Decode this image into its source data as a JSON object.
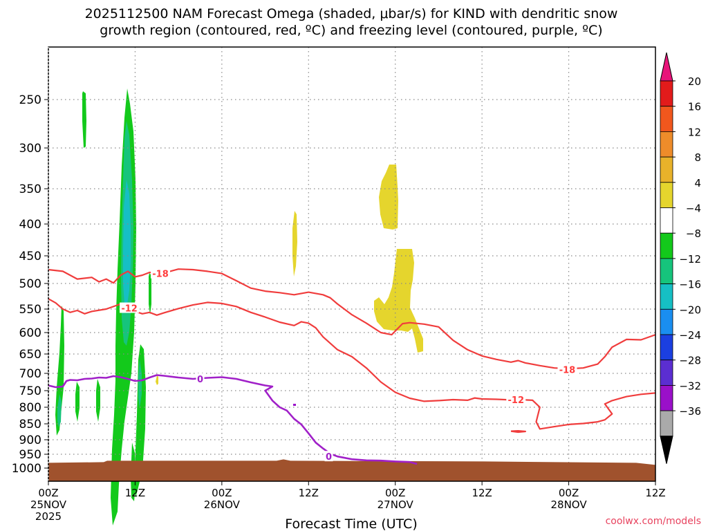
{
  "chart_data": {
    "type": "contour",
    "title_line1": "2025112500 NAM Forecast Omega (shaded, μbar/s) for KIND with dendritic snow",
    "title_line2": "growth region (contoured, red, ºC) and freezing level (contoured, purple, ºC)",
    "xlabel": "Forecast Time (UTC)",
    "watermark": "coolwx.com/models",
    "x_range_hours": [
      0,
      84
    ],
    "pressure_range_hpa": [
      1000,
      200
    ],
    "x_ticks": [
      {
        "h": 0,
        "l1": "00Z",
        "l2": "25NOV",
        "l3": "2025"
      },
      {
        "h": 12,
        "l1": "12Z",
        "l2": "",
        "l3": ""
      },
      {
        "h": 24,
        "l1": "00Z",
        "l2": "26NOV",
        "l3": ""
      },
      {
        "h": 36,
        "l1": "12Z",
        "l2": "",
        "l3": ""
      },
      {
        "h": 48,
        "l1": "00Z",
        "l2": "27NOV",
        "l3": ""
      },
      {
        "h": 60,
        "l1": "12Z",
        "l2": "",
        "l3": ""
      },
      {
        "h": 72,
        "l1": "00Z",
        "l2": "28NOV",
        "l3": ""
      },
      {
        "h": 84,
        "l1": "12Z",
        "l2": "",
        "l3": ""
      }
    ],
    "y_ticks": [
      250,
      300,
      350,
      400,
      450,
      500,
      550,
      600,
      650,
      700,
      750,
      800,
      850,
      900,
      950,
      1000
    ],
    "colorbar": {
      "labels": [
        "20",
        "16",
        "12",
        "8",
        "4",
        "−4",
        "−8",
        "−12",
        "−16",
        "−20",
        "−24",
        "−28",
        "−32",
        "−36"
      ],
      "colors": [
        "#e21b1b",
        "#f1571d",
        "#ee8c2a",
        "#e8b22a",
        "#e5d52d",
        "#ffffff",
        "#13c91b",
        "#16c47c",
        "#16bfc4",
        "#1a8ef0",
        "#1b3fe0",
        "#5b2ed1",
        "#9a10c9",
        "#aaaaaa"
      ],
      "top_color": "#e8157a",
      "bottom_color": "#000000"
    },
    "red_contours": [
      {
        "label": "-18",
        "points": [
          [
            0,
            475
          ],
          [
            2,
            478
          ],
          [
            4,
            492
          ],
          [
            6,
            489
          ],
          [
            7,
            497
          ],
          [
            8,
            492
          ],
          [
            9,
            499
          ],
          [
            10,
            485
          ],
          [
            11,
            478
          ],
          [
            12,
            488
          ],
          [
            13,
            485
          ],
          [
            14,
            480
          ],
          [
            16,
            481
          ],
          [
            18,
            474
          ],
          [
            20,
            475
          ],
          [
            22,
            478
          ],
          [
            24,
            482
          ],
          [
            26,
            495
          ],
          [
            28,
            509
          ],
          [
            30,
            515
          ],
          [
            32,
            518
          ],
          [
            34,
            522
          ],
          [
            36,
            517
          ],
          [
            38,
            522
          ],
          [
            39,
            528
          ],
          [
            40,
            540
          ],
          [
            42,
            562
          ],
          [
            44,
            580
          ],
          [
            46,
            600
          ],
          [
            47.5,
            605
          ],
          [
            49,
            581
          ],
          [
            50,
            579
          ],
          [
            52,
            582
          ],
          [
            54,
            588
          ],
          [
            56,
            618
          ],
          [
            58,
            640
          ],
          [
            60,
            655
          ],
          [
            62,
            664
          ],
          [
            64,
            671
          ],
          [
            65,
            667
          ],
          [
            66,
            673
          ],
          [
            68,
            680
          ],
          [
            70,
            686
          ],
          [
            72,
            688
          ],
          [
            74,
            686
          ],
          [
            76,
            676
          ],
          [
            77,
            657
          ],
          [
            78,
            634
          ],
          [
            80,
            616
          ],
          [
            82,
            617
          ],
          [
            84,
            605
          ]
        ],
        "label_at": [
          16,
          482
        ]
      },
      {
        "label": "-12",
        "points": [
          [
            0,
            530
          ],
          [
            1,
            538
          ],
          [
            2,
            550
          ],
          [
            3,
            557
          ],
          [
            4,
            553
          ],
          [
            5,
            560
          ],
          [
            6,
            555
          ],
          [
            8,
            550
          ],
          [
            10,
            540
          ],
          [
            11,
            548
          ],
          [
            12,
            555
          ],
          [
            13,
            560
          ],
          [
            14,
            557
          ],
          [
            15,
            563
          ],
          [
            16,
            558
          ],
          [
            18,
            549
          ],
          [
            20,
            542
          ],
          [
            22,
            537
          ],
          [
            24,
            539
          ],
          [
            26,
            545
          ],
          [
            28,
            557
          ],
          [
            30,
            567
          ],
          [
            32,
            578
          ],
          [
            34,
            585
          ],
          [
            35,
            577
          ],
          [
            36,
            580
          ],
          [
            37,
            590
          ],
          [
            38,
            610
          ],
          [
            40,
            640
          ],
          [
            42,
            657
          ],
          [
            44,
            686
          ],
          [
            46,
            725
          ],
          [
            48,
            755
          ],
          [
            50,
            773
          ],
          [
            52,
            782
          ],
          [
            54,
            780
          ],
          [
            56,
            777
          ],
          [
            58,
            779
          ],
          [
            59,
            772
          ],
          [
            60,
            775
          ],
          [
            62,
            776
          ],
          [
            64,
            778
          ],
          [
            66,
            778
          ],
          [
            67,
            779
          ],
          [
            68,
            800
          ],
          [
            67.5,
            844
          ],
          [
            68,
            866
          ],
          [
            70,
            859
          ],
          [
            72,
            852
          ],
          [
            74,
            849
          ],
          [
            76,
            844
          ],
          [
            77,
            838
          ],
          [
            78,
            820
          ],
          [
            77,
            790
          ],
          [
            78,
            780
          ],
          [
            80,
            768
          ],
          [
            82,
            761
          ],
          [
            84,
            757
          ]
        ],
        "label_at": [
          11,
          548
        ]
      },
      {
        "label": "",
        "points": [
          [
            64,
            873
          ],
          [
            65,
            876
          ],
          [
            66,
            874
          ],
          [
            65,
            872
          ],
          [
            64,
            873
          ]
        ],
        "label_at": null
      }
    ],
    "purple_contours": [
      {
        "label": "0",
        "points": [
          [
            0,
            735
          ],
          [
            1,
            740
          ],
          [
            2,
            738
          ],
          [
            2.5,
            722
          ],
          [
            3,
            719
          ],
          [
            4,
            720
          ],
          [
            5,
            716
          ],
          [
            6,
            715
          ],
          [
            7,
            712
          ],
          [
            8,
            713
          ],
          [
            9,
            708
          ],
          [
            10,
            711
          ],
          [
            11,
            716
          ],
          [
            12,
            722
          ],
          [
            13,
            720
          ],
          [
            14,
            712
          ],
          [
            15,
            705
          ],
          [
            16,
            707
          ],
          [
            18,
            712
          ],
          [
            20,
            716
          ],
          [
            22,
            713
          ],
          [
            24,
            711
          ],
          [
            26,
            716
          ],
          [
            28,
            726
          ],
          [
            30,
            735
          ],
          [
            31,
            738
          ],
          [
            30,
            750
          ],
          [
            31,
            780
          ],
          [
            32,
            800
          ],
          [
            33,
            810
          ],
          [
            34,
            835
          ],
          [
            35,
            852
          ],
          [
            36,
            880
          ],
          [
            37,
            910
          ],
          [
            38,
            930
          ],
          [
            39,
            948
          ],
          [
            40,
            958
          ],
          [
            42,
            968
          ],
          [
            44,
            972
          ],
          [
            46,
            973
          ],
          [
            48,
            976
          ],
          [
            50,
            978
          ],
          [
            51,
            985
          ]
        ],
        "label_at": [
          21,
          716
        ]
      }
    ],
    "legend_labels": [
      {
        "text": "-18",
        "h": 15.5,
        "p": 482,
        "color": "#ff3b3b"
      },
      {
        "text": "-12",
        "h": 11.2,
        "p": 548,
        "color": "#ff3b3b"
      },
      {
        "text": "-18",
        "h": 71.8,
        "p": 690,
        "color": "#ff3b3b"
      },
      {
        "text": "-12",
        "h": 64.7,
        "p": 777,
        "color": "#ff3b3b"
      },
      {
        "text": "0",
        "h": 21.0,
        "p": 716,
        "color": "#a020c8"
      },
      {
        "text": "0",
        "h": 38.8,
        "p": 958,
        "color": "#a020c8"
      }
    ],
    "terrain": {
      "color": "#a0522d",
      "top_hpa": 976
    }
  }
}
